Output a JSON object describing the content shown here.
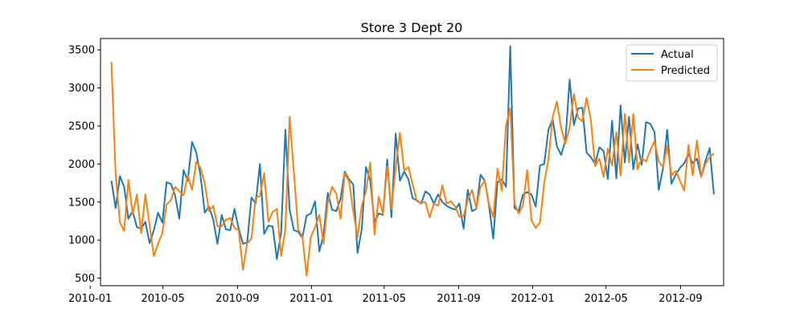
{
  "chart_data": {
    "type": "line",
    "title": "Store 3 Dept 20",
    "xlabel": "",
    "ylabel": "",
    "xlim": [
      "2010-01-18",
      "2012-11-11"
    ],
    "ylim": [
      400,
      3650
    ],
    "x_ticks": [
      "2010-01",
      "2010-05",
      "2010-09",
      "2011-01",
      "2011-05",
      "2011-09",
      "2012-01",
      "2012-05",
      "2012-09"
    ],
    "y_ticks": [
      500,
      1000,
      1500,
      2000,
      2500,
      3000,
      3500
    ],
    "grid": false,
    "legend": {
      "position": "top-right",
      "entries": [
        "Actual",
        "Predicted"
      ]
    },
    "colors": {
      "Actual": "#1f77b4",
      "Predicted": "#ff7f0e"
    },
    "start_date": "2010-02-05",
    "interval_days": 7,
    "series": [
      {
        "name": "Actual",
        "values": [
          1780,
          1420,
          1840,
          1700,
          1280,
          1380,
          1170,
          1150,
          1240,
          960,
          1130,
          1360,
          1230,
          1760,
          1740,
          1590,
          1280,
          1920,
          1780,
          2290,
          2150,
          1850,
          1360,
          1440,
          1270,
          950,
          1330,
          1140,
          1130,
          1410,
          1150,
          950,
          970,
          1560,
          1480,
          2000,
          1080,
          1190,
          1180,
          750,
          1100,
          2450,
          1400,
          1130,
          1110,
          1030,
          1320,
          1350,
          1510,
          850,
          1070,
          1620,
          1400,
          1380,
          1540,
          1900,
          1800,
          1730,
          830,
          1140,
          1960,
          1780,
          1240,
          1350,
          1330,
          2060,
          1300,
          2400,
          1780,
          1900,
          1800,
          1550,
          1520,
          1480,
          1640,
          1600,
          1480,
          1600,
          1500,
          1450,
          1420,
          1400,
          1480,
          1150,
          1660,
          1380,
          1410,
          1860,
          1780,
          1450,
          1020,
          1760,
          1800,
          1700,
          3550,
          1420,
          1380,
          1600,
          1630,
          1600,
          1440,
          1980,
          2000,
          2450,
          2590,
          2230,
          2120,
          2310,
          3110,
          2510,
          2730,
          2740,
          2150,
          2090,
          2000,
          2220,
          2170,
          1800,
          2570,
          1810,
          2770,
          2020,
          2620,
          1930,
          2260,
          1990,
          2550,
          2530,
          2420,
          1660,
          1940,
          2450,
          1740,
          1860,
          1950,
          2010,
          2130,
          2010,
          2070,
          1830,
          2040,
          2210,
          1600
        ]
      },
      {
        "name": "Predicted",
        "values": [
          3340,
          1860,
          1230,
          1120,
          1790,
          1340,
          1600,
          1090,
          1600,
          1190,
          790,
          950,
          1090,
          1470,
          1520,
          1700,
          1640,
          1590,
          1850,
          1660,
          2030,
          1950,
          1750,
          1380,
          1450,
          1180,
          1180,
          1270,
          1290,
          1160,
          1130,
          610,
          960,
          1020,
          1560,
          1580,
          1880,
          1240,
          1370,
          1410,
          790,
          1140,
          2620,
          1890,
          1140,
          1050,
          530,
          1040,
          1170,
          1330,
          950,
          1500,
          1700,
          1610,
          1280,
          1880,
          1770,
          1380,
          1040,
          1450,
          1640,
          2020,
          1070,
          1570,
          1340,
          1970,
          1410,
          1950,
          2410,
          1910,
          1960,
          1730,
          1510,
          1490,
          1500,
          1300,
          1480,
          1450,
          1720,
          1480,
          1510,
          1440,
          1310,
          1310,
          1530,
          1660,
          1420,
          1700,
          1780,
          1470,
          1300,
          1940,
          1650,
          2510,
          2730,
          1480,
          1350,
          1460,
          1920,
          1260,
          1160,
          1230,
          1750,
          2060,
          2620,
          2820,
          2470,
          2270,
          2480,
          2920,
          2610,
          2560,
          2870,
          2580,
          1970,
          2070,
          1830,
          2200,
          1980,
          2420,
          1850,
          2660,
          2020,
          2660,
          1930,
          2080,
          2030,
          2180,
          2300,
          2030,
          1960,
          2240,
          1850,
          1910,
          1780,
          1650,
          2250,
          1850,
          2310,
          1830,
          2000,
          2090,
          2140
        ]
      }
    ]
  }
}
